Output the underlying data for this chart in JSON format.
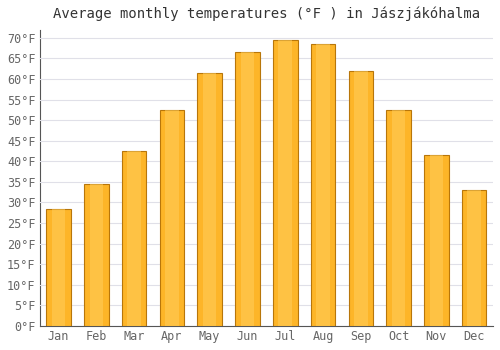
{
  "title": "Average monthly temperatures (°F ) in Jászjákóhalma",
  "months": [
    "Jan",
    "Feb",
    "Mar",
    "Apr",
    "May",
    "Jun",
    "Jul",
    "Aug",
    "Sep",
    "Oct",
    "Nov",
    "Dec"
  ],
  "values": [
    28.5,
    34.5,
    42.5,
    52.5,
    61.5,
    66.5,
    69.5,
    68.5,
    62.0,
    52.5,
    41.5,
    33.0
  ],
  "bar_color_main": "#FDB528",
  "bar_color_light": "#FFD060",
  "bar_color_dark": "#E8950A",
  "bar_edge_color": "#B8760A",
  "background_color": "#FFFFFF",
  "grid_color": "#E0E0E8",
  "axis_color": "#555555",
  "ylim": [
    0,
    72
  ],
  "yticks": [
    0,
    5,
    10,
    15,
    20,
    25,
    30,
    35,
    40,
    45,
    50,
    55,
    60,
    65,
    70
  ],
  "ylabel_format": "°F",
  "title_fontsize": 10,
  "tick_fontsize": 8.5,
  "font_family": "monospace",
  "tick_color": "#666666"
}
